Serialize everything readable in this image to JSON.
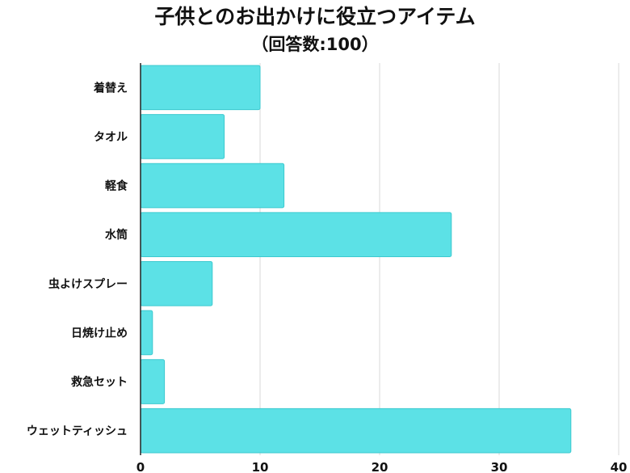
{
  "chart_data": {
    "type": "bar",
    "orientation": "horizontal",
    "title": "子供とのお出かけに役立つアイテム",
    "subtitle": "（回答数:100）",
    "categories": [
      "着替え",
      "タオル",
      "軽食",
      "水筒",
      "虫よけスプレー",
      "日焼け止め",
      "救急セット",
      "ウェットティッシュ"
    ],
    "values": [
      10,
      7,
      12,
      26,
      6,
      1,
      2,
      36
    ],
    "xlim": [
      0,
      40
    ],
    "xticks": [
      0,
      10,
      20,
      30,
      40
    ],
    "xlabel": "",
    "ylabel": "",
    "grid": "vertical",
    "legend": "none",
    "colors": {
      "bar": "#5ce1e6",
      "bar_border": "#3cc9cf",
      "grid": "#d9d9d9",
      "axis": "#222222"
    }
  }
}
